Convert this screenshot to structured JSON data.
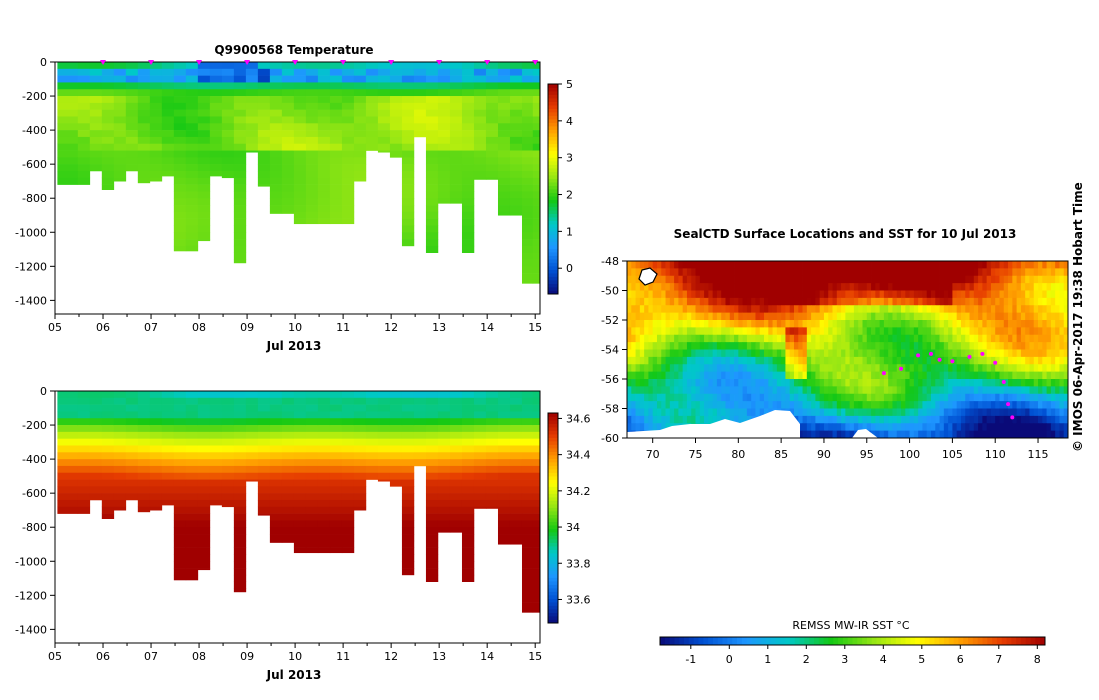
{
  "colors": {
    "temperature_scale": [
      "#0a0a78",
      "#0050d2",
      "#1e96ff",
      "#00c8c8",
      "#14c814",
      "#96e614",
      "#ffff00",
      "#ffa000",
      "#e63c00",
      "#a00000"
    ],
    "salinity_scale": [
      "#0a0a78",
      "#0050d2",
      "#1e96ff",
      "#00c8c8",
      "#14c814",
      "#96e614",
      "#ffff00",
      "#ffa000",
      "#e63c00",
      "#a00000"
    ],
    "sst_scale": [
      "#0a0a78",
      "#0050d2",
      "#1e96ff",
      "#00c8c8",
      "#14c814",
      "#96e614",
      "#ffff00",
      "#ffa000",
      "#e63c00",
      "#a00000"
    ],
    "track": "#ff00ff",
    "land_mask": "#ffffff"
  },
  "chart_data": [
    {
      "type": "heatmap",
      "id": "temperature",
      "title": "Q9900568  Temperature",
      "xlabel": "Jul 2013",
      "ylabel": "",
      "x_tick_labels": [
        "05",
        "06",
        "07",
        "08",
        "09",
        "10",
        "11",
        "12",
        "13",
        "14",
        "15"
      ],
      "y_tick_labels": [
        "0",
        "-200",
        "-400",
        "-600",
        "-800",
        "-1000",
        "-1200",
        "-1400"
      ],
      "xlim": [
        5.0,
        15.1
      ],
      "ylim": [
        -1480,
        0
      ],
      "colorbar": {
        "ticks": [
          "0",
          "1",
          "2",
          "3",
          "4",
          "5"
        ],
        "range": [
          -0.7,
          5.0
        ]
      },
      "profile_days": [
        5.35,
        5.6,
        5.85,
        6.1,
        6.35,
        6.6,
        6.85,
        7.1,
        7.35,
        7.6,
        7.85,
        8.1,
        8.35,
        8.6,
        8.85,
        9.1,
        9.35,
        9.6,
        9.85,
        10.1,
        10.35,
        10.6,
        10.85,
        11.1,
        11.35,
        11.6,
        11.85,
        12.1,
        12.35,
        12.6,
        12.85,
        13.1,
        13.35,
        13.6,
        13.85,
        14.1,
        14.35,
        14.6,
        14.85,
        15.05
      ],
      "max_depths": [
        -720,
        -720,
        -640,
        -750,
        -700,
        -640,
        -710,
        -700,
        -670,
        -1110,
        -1110,
        -1050,
        -670,
        -680,
        -1180,
        -530,
        -730,
        -890,
        -890,
        -950,
        -950,
        -950,
        -950,
        -950,
        -700,
        -520,
        -530,
        -560,
        -1080,
        -440,
        -1120,
        -830,
        -830,
        -1120,
        -690,
        -690,
        -900,
        -900,
        -1300,
        -1300
      ],
      "surface_value": 1.4,
      "deep_value": 2.3,
      "surface_markers_days": [
        6,
        7,
        8,
        9,
        10,
        11,
        12,
        13,
        14,
        15
      ]
    },
    {
      "type": "heatmap",
      "id": "salinity",
      "title": "",
      "xlabel": "Jul 2013",
      "ylabel": "",
      "x_tick_labels": [
        "05",
        "06",
        "07",
        "08",
        "09",
        "10",
        "11",
        "12",
        "13",
        "14",
        "15"
      ],
      "y_tick_labels": [
        "0",
        "-200",
        "-400",
        "-600",
        "-800",
        "-1000",
        "-1200",
        "-1400"
      ],
      "xlim": [
        5.0,
        15.1
      ],
      "ylim": [
        -1480,
        0
      ],
      "colorbar": {
        "ticks": [
          "33.6",
          "33.8",
          "34",
          "34.2",
          "34.4",
          "34.6"
        ],
        "range": [
          33.47,
          34.63
        ]
      },
      "profile_days": [
        5.35,
        5.6,
        5.85,
        6.1,
        6.35,
        6.6,
        6.85,
        7.1,
        7.35,
        7.6,
        7.85,
        8.1,
        8.35,
        8.6,
        8.85,
        9.1,
        9.35,
        9.6,
        9.85,
        10.1,
        10.35,
        10.6,
        10.85,
        11.1,
        11.35,
        11.6,
        11.85,
        12.1,
        12.35,
        12.6,
        12.85,
        13.1,
        13.35,
        13.6,
        13.85,
        14.1,
        14.35,
        14.6,
        14.85,
        15.05
      ],
      "max_depths": [
        -720,
        -720,
        -640,
        -750,
        -700,
        -640,
        -710,
        -700,
        -670,
        -1110,
        -1110,
        -1050,
        -670,
        -680,
        -1180,
        -530,
        -730,
        -890,
        -890,
        -950,
        -950,
        -950,
        -950,
        -950,
        -700,
        -520,
        -530,
        -560,
        -1080,
        -440,
        -1120,
        -830,
        -830,
        -1120,
        -690,
        -690,
        -900,
        -900,
        -1300,
        -1300
      ],
      "surface_value": 33.9,
      "deep_value": 34.62
    },
    {
      "type": "heatmap",
      "id": "sst_map",
      "title": "SealCTD Surface Locations and SST for 10 Jul 2013",
      "xlabel": "",
      "ylabel": "",
      "x_tick_labels": [
        "70",
        "75",
        "80",
        "85",
        "90",
        "95",
        "100",
        "105",
        "110",
        "115"
      ],
      "y_tick_labels": [
        "-48",
        "-50",
        "-52",
        "-54",
        "-56",
        "-58",
        "-60"
      ],
      "xlim": [
        67.0,
        118.5
      ],
      "ylim": [
        -60,
        -48
      ],
      "colorbar": {
        "label": "REMSS MW-IR SST °C",
        "ticks": [
          "-1",
          "0",
          "1",
          "2",
          "3",
          "4",
          "5",
          "6",
          "7",
          "8"
        ],
        "range": [
          -1.8,
          8.2
        ]
      },
      "track_points": [
        [
          97.0,
          -55.6
        ],
        [
          99.0,
          -55.3
        ],
        [
          101.0,
          -54.4
        ],
        [
          102.5,
          -54.3
        ],
        [
          103.5,
          -54.7
        ],
        [
          105.0,
          -54.8
        ],
        [
          107.0,
          -54.5
        ],
        [
          108.5,
          -54.3
        ],
        [
          110.0,
          -54.9
        ],
        [
          111.0,
          -56.2
        ],
        [
          111.5,
          -57.7
        ],
        [
          112.0,
          -58.6
        ]
      ],
      "side_text": "© IMOS 06-Apr-2017 19:38 Hobart Time"
    }
  ]
}
